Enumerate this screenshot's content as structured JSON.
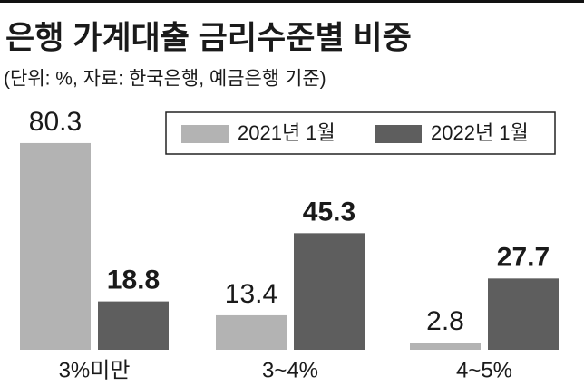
{
  "chart_data": {
    "type": "bar",
    "title": "은행 가계대출 금리수준별 비중",
    "subtitle": "(단위: %, 자료: 한국은행, 예금은행 기준)",
    "categories": [
      "3%미만",
      "3~4%",
      "4~5%"
    ],
    "series": [
      {
        "name": "2021년 1월",
        "color": "#b3b3b3",
        "values": [
          80.3,
          13.4,
          2.8
        ]
      },
      {
        "name": "2022년 1월",
        "color": "#5e5e5e",
        "values": [
          18.8,
          45.3,
          27.7
        ]
      }
    ],
    "ylim": [
      0,
      100
    ]
  }
}
